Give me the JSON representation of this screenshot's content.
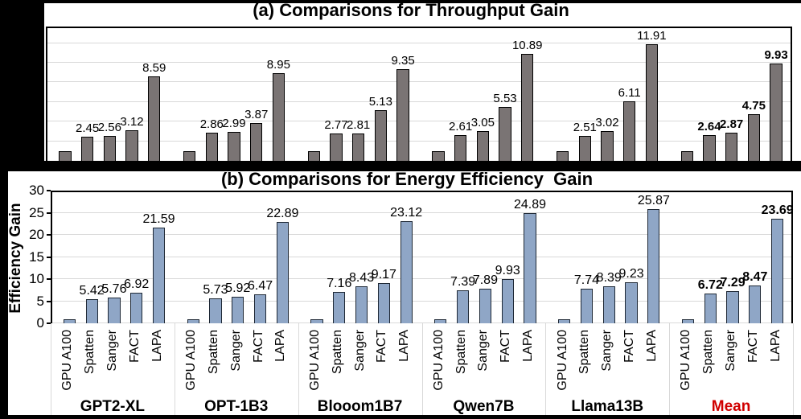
{
  "page": {
    "background": "#000000"
  },
  "colors": {
    "panel": "#ffffff",
    "gridline": "#d9d9d9",
    "axis": "#000000",
    "mean_red": "#d00000"
  },
  "chart_data": [
    {
      "id": "a",
      "type": "bar",
      "title": "(a) Comparisons for Throughput Gain",
      "categories": [
        "GPT2-XL",
        "OPT-1B3",
        "Blooom1B7",
        "Qwen7B",
        "Llama13B",
        "Mean"
      ],
      "series_labels": [
        "GPU A100",
        "Spatten",
        "Sanger",
        "FACT",
        "LAPA"
      ],
      "values": [
        [
          1,
          2.45,
          2.56,
          3.12,
          8.59
        ],
        [
          1,
          2.86,
          2.99,
          3.87,
          8.95
        ],
        [
          1,
          2.77,
          2.81,
          5.13,
          9.35
        ],
        [
          1,
          2.61,
          3.05,
          5.53,
          10.89
        ],
        [
          1,
          2.51,
          3.02,
          6.11,
          11.91
        ],
        [
          1,
          2.64,
          2.87,
          4.75,
          9.93
        ]
      ],
      "value_labels": [
        [
          "",
          "2.45",
          "2.56",
          "3.12",
          "8.59"
        ],
        [
          "",
          "2.86",
          "2.99",
          "3.87",
          "8.95"
        ],
        [
          "",
          "2.77",
          "2.81",
          "5.13",
          "9.35"
        ],
        [
          "",
          "2.61",
          "3.05",
          "5.53",
          "10.89"
        ],
        [
          "",
          "2.51",
          "3.02",
          "6.11",
          "11.91"
        ],
        [
          "",
          "2.64",
          "2.87",
          "4.75",
          "9.93"
        ]
      ],
      "ylim": [
        0,
        13.7
      ],
      "grid_values": [
        2,
        4,
        6,
        8,
        10,
        12
      ],
      "grid": true,
      "axis_ticks_visible": false,
      "bold_value_category": "Mean",
      "bar_color": "#7a7474",
      "bar_border": "#000000",
      "note": "y-axis and x-axis labels cropped out of view; baseline GPU A100 bars unlabeled (≈1)"
    },
    {
      "id": "b",
      "type": "bar",
      "title": "(b) Comparisons for Energy Efficiency  Gain",
      "ylabel": "Efficiency Gain",
      "categories": [
        "GPT2-XL",
        "OPT-1B3",
        "Blooom1B7",
        "Qwen7B",
        "Llama13B",
        "Mean"
      ],
      "series_labels": [
        "GPU A100",
        "Spatten",
        "Sanger",
        "FACT",
        "LAPA"
      ],
      "values": [
        [
          1,
          5.42,
          5.76,
          6.92,
          21.59
        ],
        [
          1,
          5.73,
          5.92,
          6.47,
          22.89
        ],
        [
          1,
          7.16,
          8.43,
          9.17,
          23.12
        ],
        [
          1,
          7.39,
          7.89,
          9.93,
          24.89
        ],
        [
          1,
          7.74,
          8.39,
          9.23,
          25.87
        ],
        [
          1,
          6.72,
          7.29,
          8.47,
          23.69
        ]
      ],
      "value_labels": [
        [
          "",
          "5.42",
          "5.76",
          "6.92",
          "21.59"
        ],
        [
          "",
          "5.73",
          "5.92",
          "6.47",
          "22.89"
        ],
        [
          "",
          "7.16",
          "8.43",
          "9.17",
          "23.12"
        ],
        [
          "",
          "7.39",
          "7.89",
          "9.93",
          "24.89"
        ],
        [
          "",
          "7.74",
          "8.39",
          "9.23",
          "25.87"
        ],
        [
          "",
          "6.72",
          "7.29",
          "8.47",
          "23.69"
        ]
      ],
      "ylim": [
        0,
        30
      ],
      "yticks": [
        0,
        5,
        10,
        15,
        20,
        25,
        30
      ],
      "grid_values": [
        5,
        10,
        15,
        20,
        25
      ],
      "grid": true,
      "bold_value_category": "Mean",
      "highlight_category": "Mean",
      "highlight_color": "#d00000",
      "bar_color": "#8fa6c6",
      "bar_border": "#1e2835"
    }
  ]
}
